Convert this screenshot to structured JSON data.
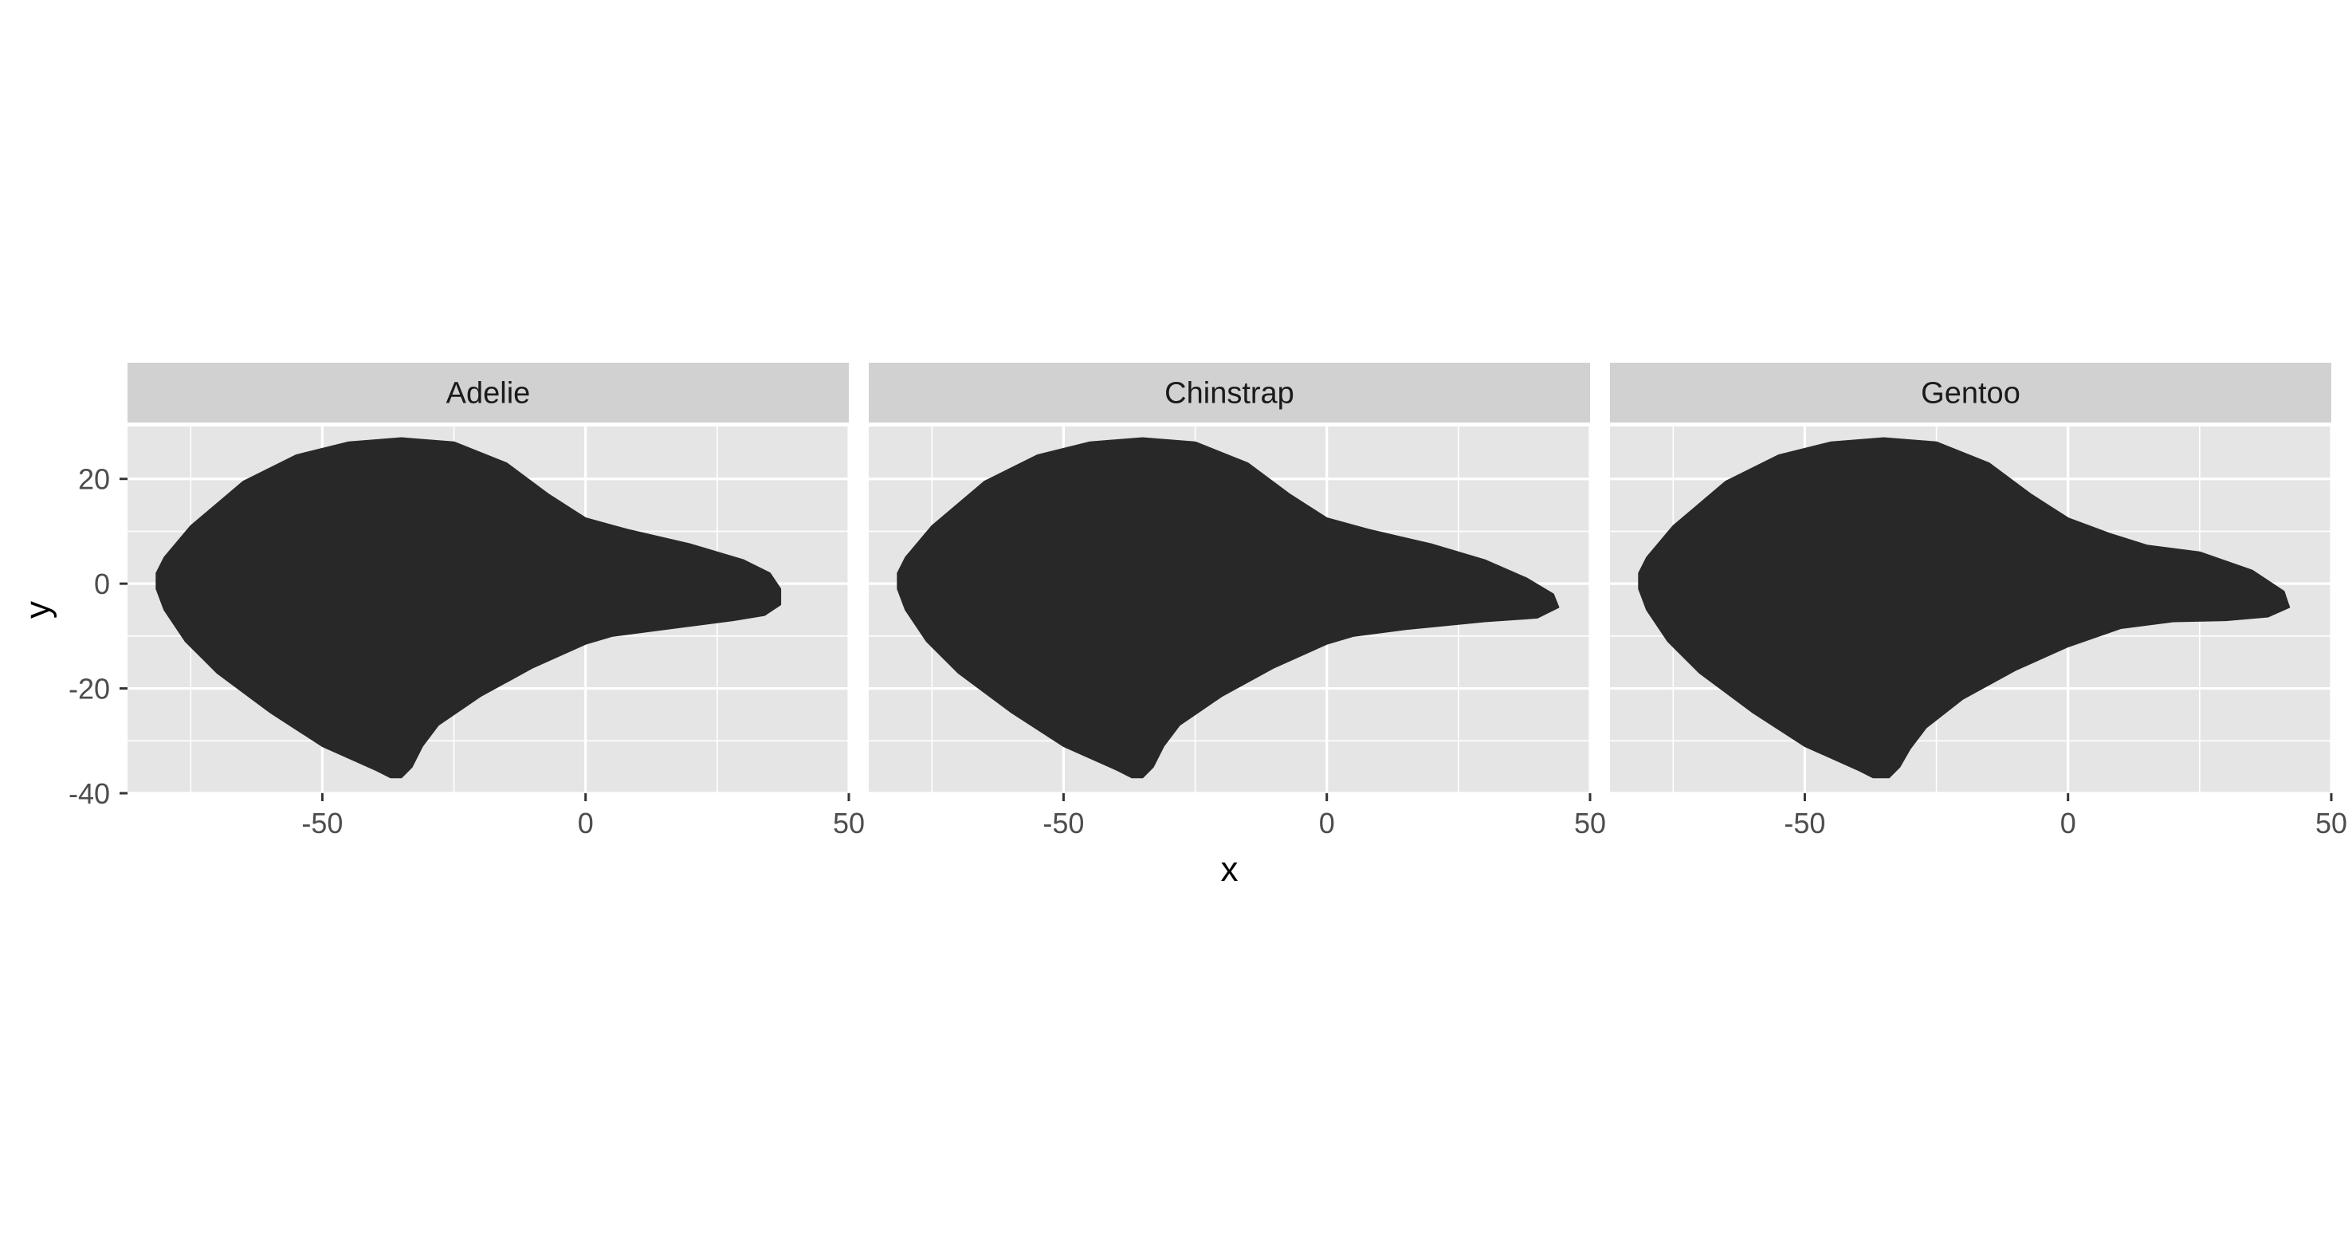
{
  "chart_data": {
    "type": "area",
    "xlabel": "x",
    "ylabel": "y",
    "xlim": [
      -87,
      50
    ],
    "ylim": [
      -40,
      30
    ],
    "x_ticks": [
      -50,
      0,
      50
    ],
    "y_ticks": [
      -40,
      -20,
      0,
      20
    ],
    "x_tick_labels": [
      "-50",
      "0",
      "50"
    ],
    "y_tick_labels": [
      "-40",
      "-20",
      "0",
      "20"
    ],
    "grid": true,
    "panel_background": "#e5e5e5",
    "strip_background": "#d1d1d1",
    "fill_color": "#282828",
    "facets": [
      {
        "label": "Adelie",
        "points": [
          [
            -81.5,
            2
          ],
          [
            -80,
            5
          ],
          [
            -75,
            11
          ],
          [
            -65,
            19.5
          ],
          [
            -55,
            24.5
          ],
          [
            -45,
            27
          ],
          [
            -35,
            27.8
          ],
          [
            -25,
            27
          ],
          [
            -15,
            23
          ],
          [
            -7,
            17
          ],
          [
            0,
            12.5
          ],
          [
            8,
            10.3
          ],
          [
            20,
            7.5
          ],
          [
            30,
            4.5
          ],
          [
            35,
            2
          ],
          [
            37,
            -1
          ],
          [
            37,
            -4
          ],
          [
            34,
            -6
          ],
          [
            28,
            -7
          ],
          [
            15,
            -8.7
          ],
          [
            5,
            -10
          ],
          [
            0,
            -11.5
          ],
          [
            -10,
            -16
          ],
          [
            -20,
            -21.5
          ],
          [
            -28,
            -27
          ],
          [
            -31,
            -31
          ],
          [
            -33,
            -35
          ],
          [
            -35,
            -37
          ],
          [
            -37,
            -37
          ],
          [
            -40,
            -35.5
          ],
          [
            -50,
            -31
          ],
          [
            -60,
            -24.5
          ],
          [
            -70,
            -17
          ],
          [
            -76,
            -11
          ],
          [
            -80,
            -5
          ],
          [
            -81.5,
            -1
          ]
        ]
      },
      {
        "label": "Chinstrap",
        "points": [
          [
            -81.5,
            2
          ],
          [
            -80,
            5
          ],
          [
            -75,
            11
          ],
          [
            -65,
            19.5
          ],
          [
            -55,
            24.5
          ],
          [
            -45,
            27
          ],
          [
            -35,
            27.8
          ],
          [
            -25,
            27
          ],
          [
            -15,
            23
          ],
          [
            -7,
            17
          ],
          [
            0,
            12.5
          ],
          [
            8,
            10.3
          ],
          [
            20,
            7.5
          ],
          [
            30,
            4.5
          ],
          [
            38,
            1
          ],
          [
            43,
            -2
          ],
          [
            44,
            -4.5
          ],
          [
            40,
            -6.5
          ],
          [
            30,
            -7.2
          ],
          [
            15,
            -8.7
          ],
          [
            5,
            -10
          ],
          [
            0,
            -11.5
          ],
          [
            -10,
            -16
          ],
          [
            -20,
            -21.5
          ],
          [
            -28,
            -27
          ],
          [
            -31,
            -31
          ],
          [
            -33,
            -35
          ],
          [
            -35,
            -37
          ],
          [
            -37,
            -37
          ],
          [
            -40,
            -35.5
          ],
          [
            -50,
            -31
          ],
          [
            -60,
            -24.5
          ],
          [
            -70,
            -17
          ],
          [
            -76,
            -11
          ],
          [
            -80,
            -5
          ],
          [
            -81.5,
            -1
          ]
        ]
      },
      {
        "label": "Gentoo",
        "points": [
          [
            -81.5,
            2
          ],
          [
            -80,
            5
          ],
          [
            -75,
            11
          ],
          [
            -65,
            19.5
          ],
          [
            -55,
            24.5
          ],
          [
            -45,
            27
          ],
          [
            -35,
            27.8
          ],
          [
            -25,
            27
          ],
          [
            -15,
            23
          ],
          [
            -7,
            17
          ],
          [
            0,
            12.5
          ],
          [
            8,
            9.5
          ],
          [
            15,
            7.3
          ],
          [
            25,
            6
          ],
          [
            35,
            2.5
          ],
          [
            41,
            -1.5
          ],
          [
            42,
            -4.5
          ],
          [
            38,
            -6.3
          ],
          [
            30,
            -7
          ],
          [
            20,
            -7.2
          ],
          [
            10,
            -8.5
          ],
          [
            0,
            -12
          ],
          [
            -10,
            -16.5
          ],
          [
            -20,
            -22
          ],
          [
            -27,
            -27.5
          ],
          [
            -30,
            -31.5
          ],
          [
            -32,
            -35
          ],
          [
            -34,
            -37
          ],
          [
            -37,
            -37
          ],
          [
            -40,
            -35.5
          ],
          [
            -50,
            -31
          ],
          [
            -60,
            -24.5
          ],
          [
            -70,
            -17
          ],
          [
            -76,
            -11
          ],
          [
            -80,
            -5
          ],
          [
            -81.5,
            -1
          ]
        ]
      }
    ]
  }
}
